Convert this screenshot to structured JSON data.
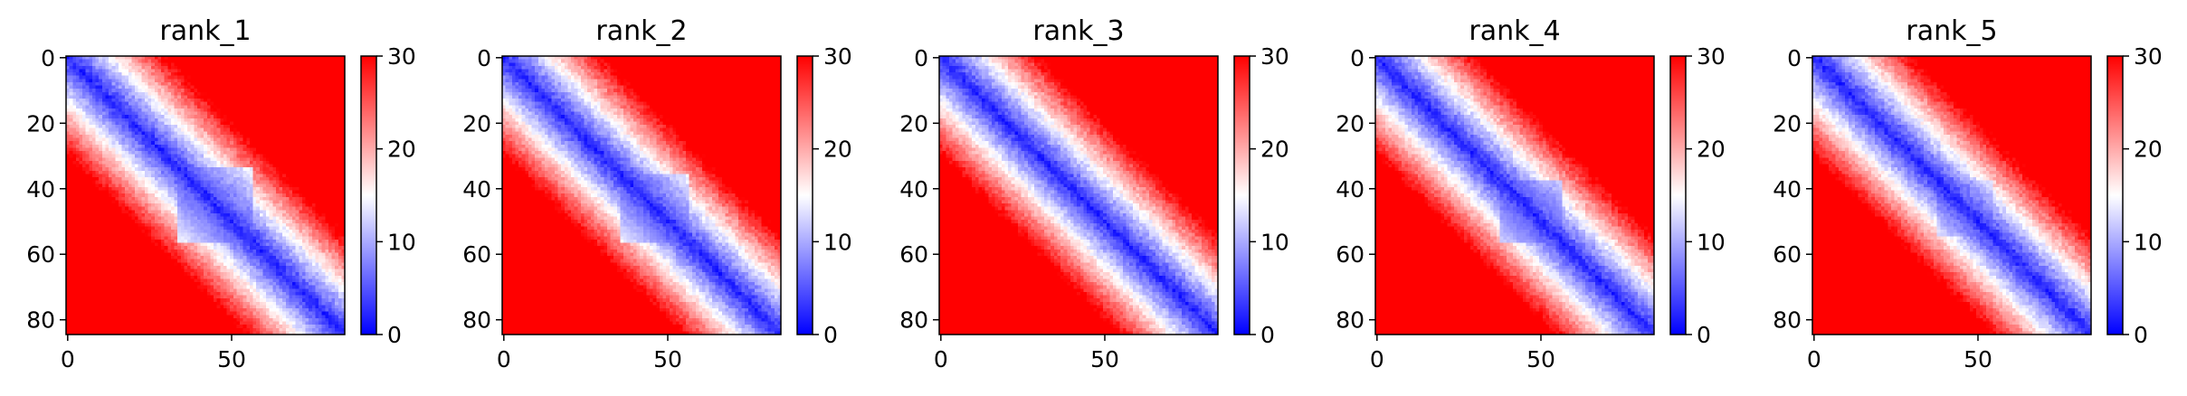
{
  "chart_data": [
    {
      "type": "heatmap",
      "title": "rank_1",
      "n": 85,
      "xticks": [
        0,
        50
      ],
      "yticks": [
        0,
        20,
        40,
        60,
        80
      ],
      "colorbar_ticks": [
        0,
        10,
        20,
        30
      ],
      "vmin": 0,
      "vmax": 30,
      "colormap": "bwr",
      "patch": {
        "start": 34,
        "end": 56,
        "strength": 0.9
      }
    },
    {
      "type": "heatmap",
      "title": "rank_2",
      "n": 85,
      "xticks": [
        0,
        50
      ],
      "yticks": [
        0,
        20,
        40,
        60,
        80
      ],
      "colorbar_ticks": [
        0,
        10,
        20,
        30
      ],
      "vmin": 0,
      "vmax": 30,
      "colormap": "bwr",
      "patch": {
        "start": 36,
        "end": 56,
        "strength": 0.8
      }
    },
    {
      "type": "heatmap",
      "title": "rank_3",
      "n": 85,
      "xticks": [
        0,
        50
      ],
      "yticks": [
        0,
        20,
        40,
        60,
        80
      ],
      "colorbar_ticks": [
        0,
        10,
        20,
        30
      ],
      "vmin": 0,
      "vmax": 30,
      "colormap": "bwr",
      "patch": {
        "start": 40,
        "end": 50,
        "strength": 0.4
      }
    },
    {
      "type": "heatmap",
      "title": "rank_4",
      "n": 85,
      "xticks": [
        0,
        50
      ],
      "yticks": [
        0,
        20,
        40,
        60,
        80
      ],
      "colorbar_ticks": [
        0,
        10,
        20,
        30
      ],
      "vmin": 0,
      "vmax": 30,
      "colormap": "bwr",
      "patch": {
        "start": 38,
        "end": 56,
        "strength": 0.95
      }
    },
    {
      "type": "heatmap",
      "title": "rank_5",
      "n": 85,
      "xticks": [
        0,
        50
      ],
      "yticks": [
        0,
        20,
        40,
        60,
        80
      ],
      "colorbar_ticks": [
        0,
        10,
        20,
        30
      ],
      "vmin": 0,
      "vmax": 30,
      "colormap": "bwr",
      "patch": {
        "start": 38,
        "end": 54,
        "strength": 0.6
      }
    }
  ],
  "colors": {
    "low": "#0000ff",
    "mid": "#ffffff",
    "high": "#ff0000"
  }
}
